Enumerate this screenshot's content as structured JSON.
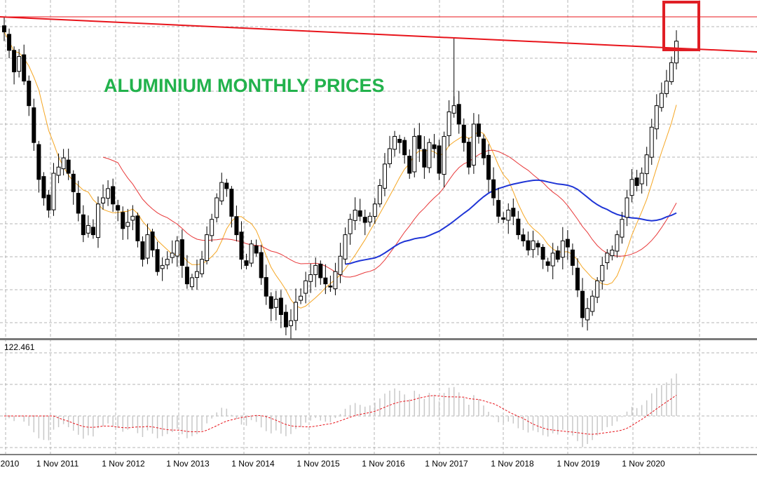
{
  "title": "ALUMINIUM MONTHLY PRICES",
  "indicator_label": "122.461",
  "x_labels": [
    "2010",
    "1 Nov 2011",
    "1 Nov 2012",
    "1 Nov 2013",
    "1 Nov 2014",
    "1 Nov 2015",
    "1 Nov 2016",
    "1 Nov 2017",
    "1 Nov 2018",
    "1 Nov 2019",
    "1 Nov 2020"
  ],
  "colors": {
    "title": "#22b24c",
    "candle_up": "#ffffff",
    "candle_down": "#000000",
    "ma_fast": "#f5a623",
    "ma_mid": "#e8393a",
    "ma_slow": "#1f35d6",
    "trendline": "#e8141b",
    "highlight_box": "#e01e25",
    "histogram": "#c8c8c8",
    "signal": "#e8141b",
    "grid": "#b4b4b4"
  },
  "chart_data": [
    {
      "type": "candlestick",
      "title": "ALUMINIUM MONTHLY PRICES",
      "x_start": "2010",
      "x_ticks": [
        "2010",
        "1 Nov 2011",
        "1 Nov 2012",
        "1 Nov 2013",
        "1 Nov 2014",
        "1 Nov 2015",
        "1 Nov 2016",
        "1 Nov 2017",
        "1 Nov 2018",
        "1 Nov 2019",
        "1 Nov 2020"
      ],
      "grid": true,
      "series": [
        {
          "kind": "candles",
          "shape": [
            0.96,
            0.9,
            0.83,
            0.88,
            0.8,
            0.72,
            0.6,
            0.48,
            0.42,
            0.38,
            0.5,
            0.52,
            0.55,
            0.5,
            0.44,
            0.37,
            0.3,
            0.33,
            0.3,
            0.4,
            0.42,
            0.45,
            0.4,
            0.38,
            0.32,
            0.34,
            0.36,
            0.28,
            0.22,
            0.3,
            0.25,
            0.18,
            0.2,
            0.22,
            0.24,
            0.28,
            0.2,
            0.14,
            0.16,
            0.18,
            0.22,
            0.3,
            0.35,
            0.42,
            0.47,
            0.45,
            0.36,
            0.3,
            0.22,
            0.2,
            0.27,
            0.24,
            0.16,
            0.1,
            0.06,
            0.09,
            0.04,
            0.0,
            0.02,
            0.08,
            0.1,
            0.15,
            0.17,
            0.2,
            0.16,
            0.14,
            0.13,
            0.18,
            0.23,
            0.3,
            0.35,
            0.38,
            0.36,
            0.34,
            0.36,
            0.4,
            0.46,
            0.53,
            0.58,
            0.62,
            0.6,
            0.56,
            0.5,
            0.62,
            0.58,
            0.52,
            0.6,
            0.58,
            0.5,
            0.62,
            0.7,
            0.72,
            0.66,
            0.6,
            0.52,
            0.66,
            0.62,
            0.55,
            0.48,
            0.42,
            0.36,
            0.35,
            0.38,
            0.36,
            0.3,
            0.28,
            0.25,
            0.28,
            0.26,
            0.22,
            0.2,
            0.24,
            0.22,
            0.28,
            0.26,
            0.2,
            0.12,
            0.03,
            0.06,
            0.1,
            0.15,
            0.2,
            0.24,
            0.25,
            0.3,
            0.35,
            0.42,
            0.48,
            0.46,
            0.5,
            0.56,
            0.65,
            0.72,
            0.76,
            0.8,
            0.86,
            0.93
          ]
        },
        {
          "name": "",
          "kind": "moving-average-fast"
        },
        {
          "name": "",
          "kind": "moving-average-medium"
        },
        {
          "name": "",
          "kind": "moving-average-slow"
        }
      ],
      "annotations": [
        "descending trendline from 2010 high",
        "horizontal resistance line",
        "box around latest candle"
      ]
    },
    {
      "type": "bar",
      "title": "",
      "value_label": "122.461",
      "series": [
        {
          "kind": "histogram"
        },
        {
          "kind": "signal-line"
        }
      ]
    }
  ]
}
